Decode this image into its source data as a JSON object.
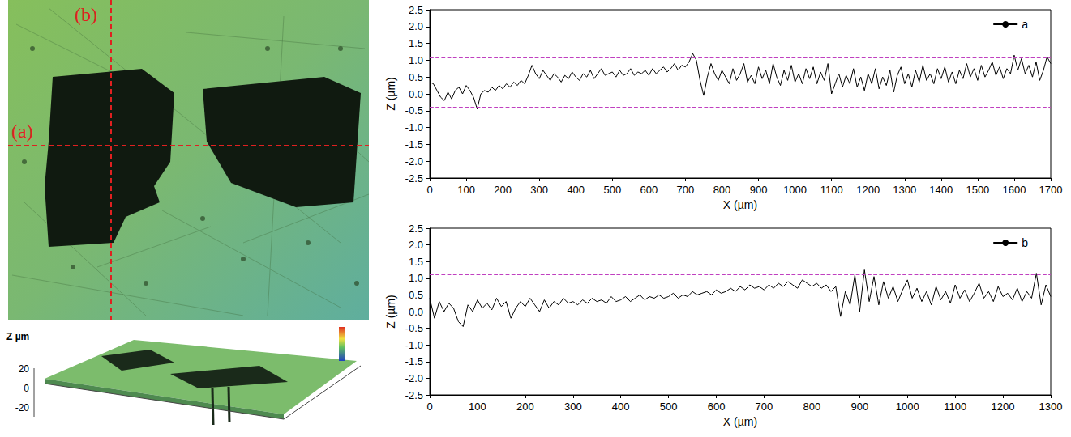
{
  "chart_data": [
    {
      "type": "line",
      "x_label": "X (µm)",
      "y_label": "Z (µm)",
      "legend": "upper right",
      "grid": false,
      "xlim": [
        0,
        1700
      ],
      "xticks": [
        0,
        100,
        200,
        300,
        400,
        500,
        600,
        700,
        800,
        900,
        1000,
        1100,
        1200,
        1300,
        1400,
        1500,
        1600,
        1700
      ],
      "ylim": [
        -2.5,
        2.5
      ],
      "yticks": [
        -2.5,
        {
          "value": -2,
          "label": "-2.0"
        },
        -1.5,
        {
          "value": -1,
          "label": "-1.0"
        },
        -0.5,
        {
          "value": 0,
          "label": "0.0"
        },
        0.5,
        {
          "value": 1,
          "label": "1.0"
        },
        1.5,
        {
          "value": 2,
          "label": "2.0"
        },
        2.5
      ],
      "reference_lines": {
        "values": [
          1.08,
          -0.4
        ],
        "color": "#c040c0",
        "line_style": "dashed"
      },
      "series": [
        {
          "name": "a",
          "color": "#000000",
          "x": [
            0,
            10,
            20,
            30,
            40,
            50,
            60,
            70,
            80,
            90,
            100,
            110,
            120,
            130,
            140,
            150,
            160,
            170,
            180,
            190,
            200,
            210,
            220,
            230,
            240,
            250,
            260,
            270,
            280,
            290,
            300,
            310,
            320,
            330,
            340,
            350,
            360,
            370,
            380,
            390,
            400,
            410,
            420,
            430,
            440,
            450,
            460,
            470,
            480,
            490,
            500,
            510,
            520,
            530,
            540,
            550,
            560,
            570,
            580,
            590,
            600,
            610,
            620,
            630,
            640,
            650,
            660,
            670,
            680,
            690,
            700,
            710,
            720,
            730,
            740,
            750,
            760,
            770,
            780,
            790,
            800,
            810,
            820,
            830,
            840,
            850,
            860,
            870,
            880,
            890,
            900,
            910,
            920,
            930,
            940,
            950,
            960,
            970,
            980,
            990,
            1000,
            1010,
            1020,
            1030,
            1040,
            1050,
            1060,
            1070,
            1080,
            1090,
            1100,
            1110,
            1120,
            1130,
            1140,
            1150,
            1160,
            1170,
            1180,
            1190,
            1200,
            1210,
            1220,
            1230,
            1240,
            1250,
            1260,
            1270,
            1280,
            1290,
            1300,
            1310,
            1320,
            1330,
            1340,
            1350,
            1360,
            1370,
            1380,
            1390,
            1400,
            1410,
            1420,
            1430,
            1440,
            1450,
            1460,
            1470,
            1480,
            1490,
            1500,
            1510,
            1520,
            1530,
            1540,
            1550,
            1560,
            1570,
            1580,
            1590,
            1600,
            1610,
            1620,
            1630,
            1640,
            1650,
            1660,
            1670,
            1680,
            1690,
            1700
          ],
          "values": [
            0.35,
            0.3,
            0.1,
            -0.1,
            -0.2,
            0.05,
            -0.15,
            0.1,
            0.2,
            0.0,
            0.25,
            0.1,
            -0.1,
            -0.45,
            0.0,
            0.1,
            0.05,
            0.2,
            0.1,
            0.25,
            0.15,
            0.3,
            0.2,
            0.35,
            0.25,
            0.4,
            0.3,
            0.55,
            0.85,
            0.6,
            0.45,
            0.7,
            0.55,
            0.4,
            0.6,
            0.5,
            0.35,
            0.55,
            0.45,
            0.65,
            0.5,
            0.4,
            0.6,
            0.5,
            0.7,
            0.45,
            0.6,
            0.75,
            0.55,
            0.6,
            0.65,
            0.5,
            0.7,
            0.55,
            0.6,
            0.75,
            0.55,
            0.65,
            0.6,
            0.7,
            0.55,
            0.75,
            0.6,
            0.7,
            0.8,
            0.65,
            0.75,
            0.9,
            0.7,
            0.85,
            0.8,
            0.95,
            1.2,
            1.0,
            0.4,
            -0.05,
            0.5,
            0.9,
            0.6,
            0.4,
            0.7,
            0.5,
            0.3,
            0.75,
            0.4,
            0.6,
            0.9,
            0.35,
            0.55,
            0.3,
            0.8,
            0.45,
            0.7,
            0.3,
            0.9,
            0.5,
            0.25,
            0.7,
            0.4,
            0.85,
            0.35,
            0.6,
            0.3,
            0.75,
            0.45,
            0.8,
            0.3,
            0.65,
            0.4,
            0.9,
            0.0,
            0.3,
            0.6,
            0.2,
            0.55,
            0.3,
            0.75,
            0.2,
            0.5,
            0.1,
            0.6,
            0.3,
            0.75,
            0.15,
            0.5,
            0.25,
            0.7,
            0.05,
            0.55,
            0.8,
            0.3,
            0.6,
            0.2,
            0.7,
            0.35,
            0.85,
            0.4,
            0.6,
            0.3,
            0.75,
            0.45,
            0.8,
            0.35,
            0.65,
            0.3,
            0.7,
            0.45,
            0.9,
            0.5,
            0.75,
            0.4,
            0.85,
            0.5,
            0.7,
            0.95,
            0.55,
            0.8,
            0.45,
            0.75,
            0.6,
            1.15,
            0.7,
            1.05,
            0.6,
            0.85,
            0.5,
            0.95,
            0.4,
            0.7,
            1.1,
            0.9
          ]
        }
      ]
    },
    {
      "type": "line",
      "x_label": "X (µm)",
      "y_label": "Z (µm)",
      "legend": "upper right",
      "grid": false,
      "xlim": [
        0,
        1300
      ],
      "xticks": [
        0,
        100,
        200,
        300,
        400,
        500,
        600,
        700,
        800,
        900,
        1000,
        1100,
        1200,
        1300
      ],
      "ylim": [
        -2.5,
        2.5
      ],
      "yticks": [
        -2.5,
        {
          "value": -2,
          "label": "-2.0"
        },
        -1.5,
        {
          "value": -1,
          "label": "-1.0"
        },
        -0.5,
        {
          "value": 0,
          "label": "0.0"
        },
        0.5,
        {
          "value": 1,
          "label": "1.0"
        },
        1.5,
        {
          "value": 2,
          "label": "2.0"
        },
        2.5
      ],
      "reference_lines": {
        "values": [
          1.12,
          -0.4
        ],
        "color": "#c040c0",
        "line_style": "dashed"
      },
      "series": [
        {
          "name": "b",
          "color": "#000000",
          "x": [
            0,
            10,
            20,
            30,
            40,
            50,
            60,
            70,
            80,
            90,
            100,
            110,
            120,
            130,
            140,
            150,
            160,
            170,
            180,
            190,
            200,
            210,
            220,
            230,
            240,
            250,
            260,
            270,
            280,
            290,
            300,
            310,
            320,
            330,
            340,
            350,
            360,
            370,
            380,
            390,
            400,
            410,
            420,
            430,
            440,
            450,
            460,
            470,
            480,
            490,
            500,
            510,
            520,
            530,
            540,
            550,
            560,
            570,
            580,
            590,
            600,
            610,
            620,
            630,
            640,
            650,
            660,
            670,
            680,
            690,
            700,
            710,
            720,
            730,
            740,
            750,
            760,
            770,
            780,
            790,
            800,
            810,
            820,
            830,
            840,
            850,
            860,
            870,
            880,
            890,
            900,
            910,
            920,
            930,
            940,
            950,
            960,
            970,
            980,
            990,
            1000,
            1010,
            1020,
            1030,
            1040,
            1050,
            1060,
            1070,
            1080,
            1090,
            1100,
            1110,
            1120,
            1130,
            1140,
            1150,
            1160,
            1170,
            1180,
            1190,
            1200,
            1210,
            1220,
            1230,
            1240,
            1250,
            1260,
            1270,
            1280,
            1290,
            1300
          ],
          "values": [
            0.4,
            -0.2,
            0.3,
            0.0,
            0.25,
            0.1,
            -0.3,
            -0.45,
            0.2,
            0.0,
            0.35,
            0.1,
            0.25,
            0.05,
            0.4,
            0.15,
            0.3,
            -0.2,
            0.1,
            0.3,
            0.15,
            0.4,
            0.2,
            0.0,
            0.35,
            0.1,
            0.3,
            0.2,
            0.4,
            0.25,
            0.3,
            0.2,
            0.35,
            0.25,
            0.4,
            0.3,
            0.35,
            0.25,
            0.45,
            0.3,
            0.35,
            0.45,
            0.3,
            0.4,
            0.5,
            0.35,
            0.45,
            0.4,
            0.5,
            0.4,
            0.45,
            0.55,
            0.4,
            0.5,
            0.45,
            0.6,
            0.5,
            0.55,
            0.6,
            0.5,
            0.65,
            0.55,
            0.6,
            0.7,
            0.6,
            0.75,
            0.65,
            0.8,
            0.7,
            0.75,
            0.65,
            0.8,
            0.7,
            0.85,
            0.75,
            0.9,
            0.8,
            0.7,
            0.95,
            0.85,
            0.75,
            0.85,
            0.7,
            0.8,
            0.6,
            0.75,
            -0.15,
            0.6,
            0.2,
            1.1,
            0.0,
            1.25,
            0.3,
            1.05,
            0.2,
            0.9,
            0.4,
            0.75,
            0.3,
            0.65,
            0.95,
            0.4,
            0.7,
            0.3,
            0.6,
            0.2,
            0.75,
            0.35,
            0.6,
            0.25,
            0.8,
            0.4,
            0.65,
            0.3,
            0.55,
            0.85,
            0.4,
            0.6,
            0.3,
            0.75,
            0.45,
            0.55,
            0.35,
            0.7,
            0.3,
            0.6,
            0.4,
            1.15,
            0.2,
            0.8,
            0.45
          ]
        }
      ]
    }
  ],
  "micrograph": {
    "line_labels": [
      "(a)",
      "(b)"
    ]
  },
  "surface_plot": {
    "z_label": "Z µm",
    "zticks": [
      20,
      0,
      -20
    ]
  }
}
